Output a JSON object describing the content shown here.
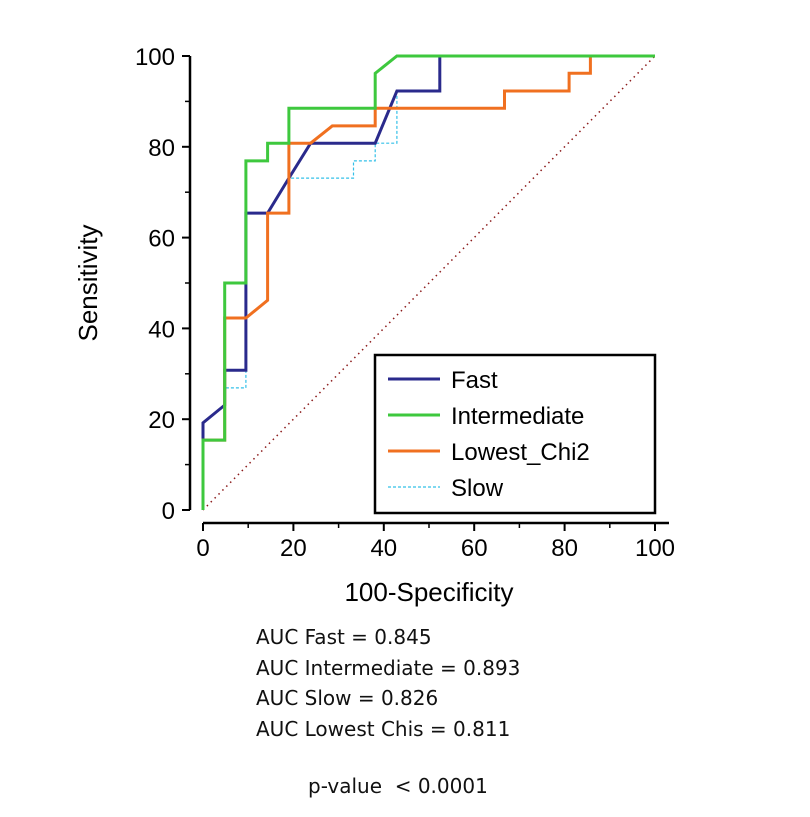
{
  "chart_data": {
    "type": "line",
    "title": "",
    "xlabel": "100-Specificity",
    "ylabel": "Sensitivity",
    "xlim": [
      0,
      100
    ],
    "ylim": [
      0,
      100
    ],
    "xticks": [
      0,
      20,
      40,
      60,
      80,
      100
    ],
    "yticks": [
      0,
      20,
      40,
      60,
      80,
      100
    ],
    "reference_line": {
      "x": [
        0,
        100
      ],
      "y": [
        0,
        100
      ],
      "style": "dotted",
      "color": "#8B1A1A"
    },
    "legend": {
      "position": "bottom-right",
      "entries": [
        "Fast",
        "Intermediate",
        "Lowest_Chi2",
        "Slow"
      ]
    },
    "series": [
      {
        "name": "Slow",
        "color": "#33C0E8",
        "style": "dashed",
        "x": [
          0,
          0,
          4.8,
          4.8,
          9.5,
          9.5,
          14.3,
          14.3,
          19,
          19,
          23.8,
          23.8,
          33.3,
          33.3,
          38.1,
          38.1,
          42.9,
          42.9,
          52.4,
          52.4,
          100
        ],
        "y": [
          0,
          15.4,
          15.4,
          26.9,
          26.9,
          65.4,
          65.4,
          65.4,
          65.4,
          73.1,
          73.1,
          73.1,
          73.1,
          76.9,
          76.9,
          80.8,
          80.8,
          92.3,
          92.3,
          100,
          100
        ]
      },
      {
        "name": "Fast",
        "color": "#2A2A8C",
        "style": "solid",
        "x": [
          0,
          0,
          4.8,
          4.8,
          9.5,
          9.5,
          14.3,
          14.3,
          19,
          23.8,
          38.1,
          42.9,
          52.4,
          52.4,
          100
        ],
        "y": [
          0,
          19.2,
          23.1,
          30.8,
          30.8,
          65.4,
          65.4,
          65.4,
          73.1,
          80.8,
          80.8,
          92.3,
          92.3,
          100,
          100
        ]
      },
      {
        "name": "Lowest_Chi2",
        "color": "#F07020",
        "style": "solid",
        "x": [
          0,
          0,
          4.8,
          4.8,
          9.5,
          14.3,
          14.3,
          19,
          19,
          23.8,
          28.6,
          38.1,
          38.1,
          66.7,
          66.7,
          81,
          81,
          85.7,
          85.7,
          100
        ],
        "y": [
          0,
          15.4,
          15.4,
          42.3,
          42.3,
          46.2,
          65.4,
          65.4,
          80.8,
          80.8,
          84.6,
          84.6,
          88.5,
          88.5,
          92.3,
          92.3,
          96.2,
          96.2,
          100,
          100
        ]
      },
      {
        "name": "Intermediate",
        "color": "#3EC83E",
        "style": "solid",
        "x": [
          0,
          0,
          4.8,
          4.8,
          9.5,
          9.5,
          14.3,
          14.3,
          19,
          19,
          38.1,
          38.1,
          42.9,
          100
        ],
        "y": [
          0,
          15.4,
          15.4,
          50,
          50,
          76.9,
          76.9,
          80.8,
          80.8,
          88.5,
          88.5,
          96.2,
          100,
          100
        ]
      }
    ]
  },
  "stats": {
    "lines": [
      "AUC Fast = 0.845",
      "AUC Intermediate = 0.893",
      "AUC Slow = 0.826",
      "AUC Lowest Chis = 0.811"
    ],
    "pvalue": "p-value  < 0.0001"
  }
}
